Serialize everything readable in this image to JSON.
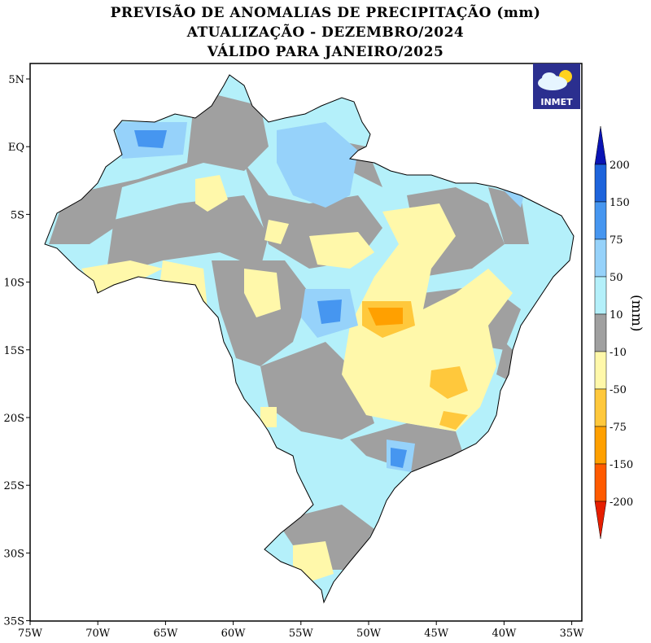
{
  "title": {
    "line1": "PREVISÃO DE ANOMALIAS DE PRECIPITAÇÃO (mm)",
    "line2": "ATUALIZAÇÃO - DEZEMBRO/2024",
    "line3": "VÁLIDO PARA JANEIRO/2025"
  },
  "logo": {
    "text": "INMET",
    "icon": "cloud-sun-icon"
  },
  "axes": {
    "lon_ticks": [
      "75W",
      "70W",
      "65W",
      "60W",
      "55W",
      "50W",
      "45W",
      "40W",
      "35W"
    ],
    "lat_ticks": [
      "5N",
      "EQ",
      "5S",
      "10S",
      "15S",
      "20S",
      "25S",
      "30S",
      "35S"
    ],
    "lon_range": [
      -75,
      -34
    ],
    "lat_range": [
      -35,
      6
    ]
  },
  "legend": {
    "unit": "(mm)",
    "labels": [
      "200",
      "150",
      "75",
      "50",
      "10",
      "-10",
      "-50",
      "-75",
      "-150",
      "-200"
    ],
    "colors": [
      "#0a14b4",
      "#1e64dc",
      "#4696f0",
      "#96d2fa",
      "#b4f0fa",
      "#a0a0a0",
      "#fff8aa",
      "#ffc83c",
      "#ffa000",
      "#ff5a00",
      "#e61e00"
    ]
  }
}
